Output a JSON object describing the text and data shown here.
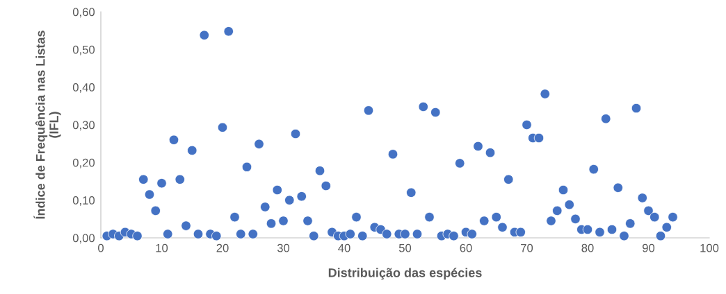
{
  "chart_data": {
    "type": "scatter",
    "xlabel": "Distribuição das espécies",
    "ylabel": "Índice de Frequência nas Listas\n(IFL)",
    "x": [
      1,
      2,
      3,
      4,
      5,
      6,
      7,
      8,
      9,
      10,
      11,
      12,
      13,
      14,
      15,
      16,
      17,
      18,
      19,
      20,
      21,
      22,
      23,
      24,
      25,
      26,
      27,
      28,
      29,
      30,
      31,
      32,
      33,
      34,
      35,
      36,
      37,
      38,
      39,
      40,
      41,
      42,
      43,
      44,
      45,
      46,
      47,
      48,
      49,
      50,
      51,
      52,
      53,
      54,
      55,
      56,
      57,
      58,
      59,
      60,
      61,
      62,
      63,
      64,
      65,
      66,
      67,
      68,
      69,
      70,
      71,
      72,
      73,
      74,
      75,
      76,
      77,
      78,
      79,
      80,
      81,
      82,
      83,
      84,
      85,
      86,
      87,
      88,
      89,
      90,
      91,
      92,
      93,
      94
    ],
    "values": [
      0.005,
      0.01,
      0.005,
      0.015,
      0.01,
      0.005,
      0.155,
      0.115,
      0.072,
      0.145,
      0.01,
      0.26,
      0.155,
      0.032,
      0.232,
      0.01,
      0.538,
      0.01,
      0.005,
      0.293,
      0.548,
      0.055,
      0.01,
      0.188,
      0.01,
      0.249,
      0.082,
      0.038,
      0.127,
      0.045,
      0.1,
      0.276,
      0.11,
      0.045,
      0.005,
      0.178,
      0.138,
      0.015,
      0.005,
      0.005,
      0.01,
      0.055,
      0.005,
      0.338,
      0.028,
      0.022,
      0.01,
      0.222,
      0.01,
      0.01,
      0.12,
      0.01,
      0.348,
      0.055,
      0.333,
      0.005,
      0.01,
      0.005,
      0.198,
      0.015,
      0.01,
      0.243,
      0.045,
      0.226,
      0.055,
      0.028,
      0.155,
      0.015,
      0.015,
      0.3,
      0.265,
      0.265,
      0.382,
      0.045,
      0.072,
      0.127,
      0.088,
      0.05,
      0.022,
      0.022,
      0.182,
      0.015,
      0.316,
      0.022,
      0.133,
      0.005,
      0.038,
      0.344,
      0.106,
      0.072,
      0.055,
      0.005,
      0.028,
      0.055
    ],
    "color": "#4472c4",
    "marker": "circle",
    "grid": false,
    "xlim": [
      0,
      100
    ],
    "xticks": [
      0,
      10,
      20,
      30,
      40,
      50,
      60,
      70,
      80,
      90,
      100
    ],
    "ylim": [
      0,
      0.6
    ],
    "yticks": [
      {
        "value": 0,
        "label": "0,00"
      },
      {
        "value": 0.1,
        "label": "0,10"
      },
      {
        "value": 0.2,
        "label": "0,20"
      },
      {
        "value": 0.3,
        "label": "0,30"
      },
      {
        "value": 0.4,
        "label": "0,40"
      },
      {
        "value": 0.5,
        "label": "0,50"
      },
      {
        "value": 0.6,
        "label": "0,60"
      }
    ]
  }
}
